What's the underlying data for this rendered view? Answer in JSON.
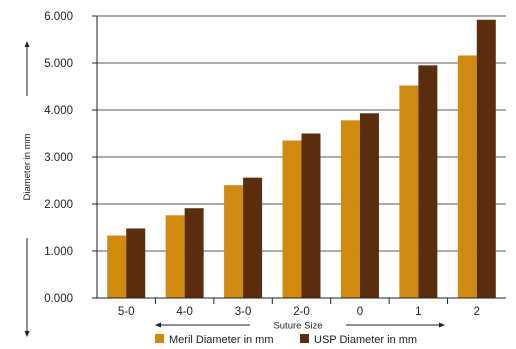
{
  "chart_data": {
    "type": "bar",
    "title": "",
    "xlabel": "Suture Size",
    "ylabel": "Diameter in mm",
    "categories": [
      "5-0",
      "4-0",
      "3-0",
      "2-0",
      "0",
      "1",
      "2"
    ],
    "series": [
      {
        "name": "Meril Diameter in mm",
        "color": "#d08a10",
        "values": [
          1.33,
          1.76,
          2.4,
          3.35,
          3.78,
          4.52,
          5.16
        ]
      },
      {
        "name": "USP Diameter in mm",
        "color": "#5a2d0c",
        "values": [
          1.48,
          1.91,
          2.56,
          3.5,
          3.93,
          4.95,
          5.92
        ]
      }
    ],
    "yticks": [
      "0.000",
      "1.000",
      "2.000",
      "3.000",
      "4.000",
      "5.000",
      "6.000"
    ],
    "ylim": [
      0,
      6
    ],
    "grid": true,
    "legend_position": "bottom"
  }
}
